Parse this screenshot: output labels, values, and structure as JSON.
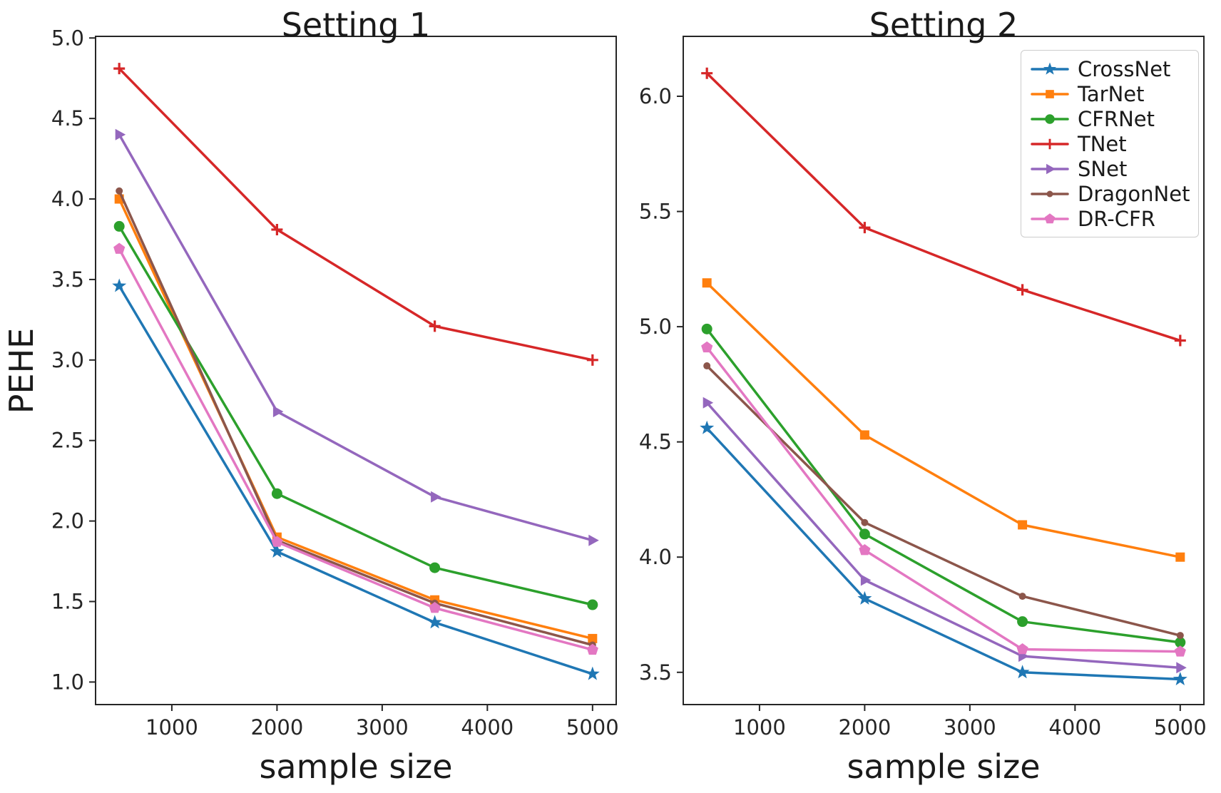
{
  "figure": {
    "background": "#ffffff",
    "text_color": "#1a1a1a",
    "spine_color": "#262626",
    "tick_color": "#262626"
  },
  "series_meta": [
    {
      "name": "CrossNet",
      "color": "#1f77b4",
      "marker": "star"
    },
    {
      "name": "TarNet",
      "color": "#ff7f0e",
      "marker": "square"
    },
    {
      "name": "CFRNet",
      "color": "#2ca02c",
      "marker": "circle"
    },
    {
      "name": "TNet",
      "color": "#d62728",
      "marker": "plus"
    },
    {
      "name": "SNet",
      "color": "#9467bd",
      "marker": "triangle-right"
    },
    {
      "name": "DragonNet",
      "color": "#8c564b",
      "marker": "dot"
    },
    {
      "name": "DR-CFR",
      "color": "#e377c2",
      "marker": "pentagon"
    }
  ],
  "legend": {
    "location": "upper-right",
    "items": [
      "CrossNet",
      "TarNet",
      "CFRNet",
      "TNet",
      "SNet",
      "DragonNet",
      "DR-CFR"
    ]
  },
  "chart_data": [
    {
      "type": "line",
      "title": "Setting 1",
      "xlabel": "sample size",
      "ylabel": "PEHE",
      "x": [
        500,
        2000,
        3500,
        5000
      ],
      "xticks": [
        1000,
        2000,
        3000,
        4000,
        5000
      ],
      "yticks": [
        1.0,
        1.5,
        2.0,
        2.5,
        3.0,
        3.5,
        4.0,
        4.5,
        5.0
      ],
      "xlim": [
        275,
        5225
      ],
      "ylim": [
        0.86,
        5.01
      ],
      "grid": false,
      "show_legend": false,
      "series": [
        {
          "name": "CrossNet",
          "values": [
            3.46,
            1.81,
            1.37,
            1.05
          ]
        },
        {
          "name": "TarNet",
          "values": [
            4.0,
            1.9,
            1.51,
            1.27
          ]
        },
        {
          "name": "CFRNet",
          "values": [
            3.83,
            2.17,
            1.71,
            1.48
          ]
        },
        {
          "name": "TNet",
          "values": [
            4.81,
            3.81,
            3.21,
            3.0
          ]
        },
        {
          "name": "SNet",
          "values": [
            4.4,
            2.68,
            2.15,
            1.88
          ]
        },
        {
          "name": "DragonNet",
          "values": [
            4.05,
            1.88,
            1.49,
            1.23
          ]
        },
        {
          "name": "DR-CFR",
          "values": [
            3.69,
            1.87,
            1.46,
            1.2
          ]
        }
      ]
    },
    {
      "type": "line",
      "title": "Setting 2",
      "xlabel": "sample size",
      "ylabel": "",
      "x": [
        500,
        2000,
        3500,
        5000
      ],
      "xticks": [
        1000,
        2000,
        3000,
        4000,
        5000
      ],
      "yticks": [
        3.5,
        4.0,
        4.5,
        5.0,
        5.5,
        6.0
      ],
      "xlim": [
        275,
        5225
      ],
      "ylim": [
        3.36,
        6.26
      ],
      "grid": false,
      "show_legend": true,
      "series": [
        {
          "name": "CrossNet",
          "values": [
            4.56,
            3.82,
            3.5,
            3.47
          ]
        },
        {
          "name": "TarNet",
          "values": [
            5.19,
            4.53,
            4.14,
            4.0
          ]
        },
        {
          "name": "CFRNet",
          "values": [
            4.99,
            4.1,
            3.72,
            3.63
          ]
        },
        {
          "name": "TNet",
          "values": [
            6.1,
            5.43,
            5.16,
            4.94
          ]
        },
        {
          "name": "SNet",
          "values": [
            4.67,
            3.9,
            3.57,
            3.52
          ]
        },
        {
          "name": "DragonNet",
          "values": [
            4.83,
            4.15,
            3.83,
            3.66
          ]
        },
        {
          "name": "DR-CFR",
          "values": [
            4.91,
            4.03,
            3.6,
            3.59
          ]
        }
      ]
    }
  ]
}
